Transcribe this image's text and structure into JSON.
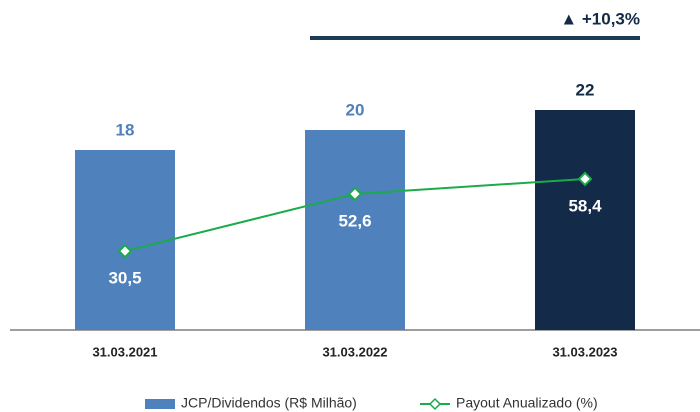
{
  "chart_data": {
    "type": "bar_line",
    "annotation": "▲ +10,3%",
    "categories": [
      "31.03.2021",
      "31.03.2022",
      "31.03.2023"
    ],
    "series": [
      {
        "name": "JCP/Dividendos (R$ Milhão)",
        "type": "bar",
        "color": "#4f81bd",
        "colors": [
          "#4f81bd",
          "#4f81bd",
          "#132a48"
        ],
        "values": [
          18,
          20,
          22
        ]
      },
      {
        "name": "Payout Anualizado (%)",
        "type": "line",
        "axis": "y2",
        "color": "#1aab4b",
        "values": [
          30.5,
          52.6,
          58.4
        ],
        "value_labels": [
          "30,5",
          "52,6",
          "58,4"
        ]
      }
    ],
    "ylim": [
      0,
      30
    ],
    "y2lim": [
      0,
      116
    ],
    "legend": "bottom"
  }
}
